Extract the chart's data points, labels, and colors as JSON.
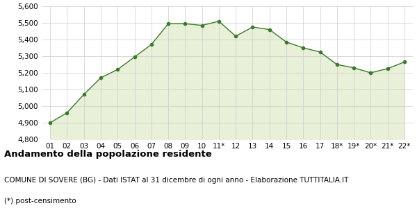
{
  "x_labels": [
    "01",
    "02",
    "03",
    "04",
    "05",
    "06",
    "07",
    "08",
    "09",
    "10",
    "11*",
    "12",
    "13",
    "14",
    "15",
    "16",
    "17",
    "18*",
    "19*",
    "20*",
    "21*",
    "22*"
  ],
  "y_values": [
    4900,
    4960,
    5070,
    5170,
    5220,
    5295,
    5370,
    5495,
    5495,
    5485,
    5510,
    5420,
    5475,
    5460,
    5385,
    5350,
    5325,
    5250,
    5230,
    5200,
    5225,
    5265
  ],
  "line_color": "#3a7a2a",
  "fill_color": "#e8f0d8",
  "marker_color": "#3a7a2a",
  "bg_color": "#ffffff",
  "grid_color": "#cccccc",
  "ylim": [
    4800,
    5600
  ],
  "yticks": [
    4800,
    4900,
    5000,
    5100,
    5200,
    5300,
    5400,
    5500,
    5600
  ],
  "title": "Andamento della popolazione residente",
  "subtitle": "COMUNE DI SOVERE (BG) - Dati ISTAT al 31 dicembre di ogni anno - Elaborazione TUTTITALIA.IT",
  "footnote": "(*) post-censimento",
  "title_fontsize": 9.5,
  "subtitle_fontsize": 7.5,
  "footnote_fontsize": 7.5,
  "tick_fontsize": 7.5
}
